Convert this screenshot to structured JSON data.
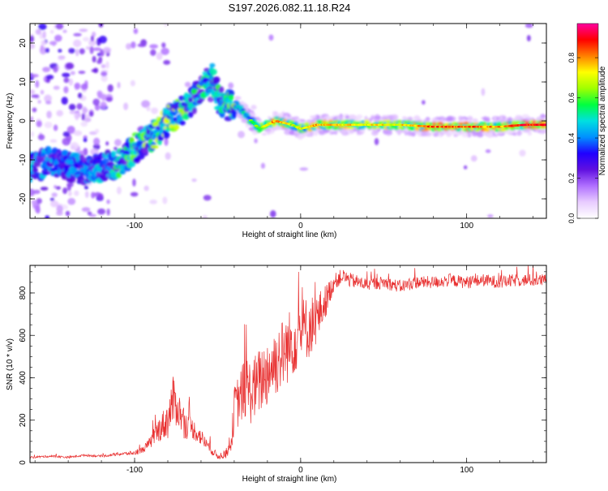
{
  "title": "S197.2026.082.11.18.R24",
  "chart_data": [
    {
      "type": "heatmap",
      "name": "spectrogram",
      "xlabel": "Height of straight line (km)",
      "ylabel": "Frequency (Hz)",
      "xlim": [
        -163,
        148
      ],
      "ylim": [
        -25,
        25
      ],
      "xticks": [
        -100,
        0,
        100
      ],
      "yticks": [
        -20,
        -10,
        0,
        10,
        20
      ],
      "colorbar": {
        "label": "Normalized spectral amplitude",
        "range": [
          0,
          0.97
        ],
        "ticks": [
          0.0,
          0.2,
          0.4,
          0.6,
          0.8
        ],
        "colors": [
          "#ffffff",
          "#e8ccff",
          "#b070ff",
          "#6010e0",
          "#2000ff",
          "#0090ff",
          "#00e0e0",
          "#00ff40",
          "#a0ff00",
          "#ffff00",
          "#ff8000",
          "#ff0000",
          "#ff00a0"
        ]
      },
      "ridge": [
        {
          "x": -160,
          "y": -12,
          "a": 0.35
        },
        {
          "x": -150,
          "y": -10,
          "a": 0.3
        },
        {
          "x": -130,
          "y": -13,
          "a": 0.3
        },
        {
          "x": -110,
          "y": -11,
          "a": 0.45
        },
        {
          "x": -100,
          "y": -7,
          "a": 0.5
        },
        {
          "x": -90,
          "y": -4,
          "a": 0.55
        },
        {
          "x": -80,
          "y": 0,
          "a": 0.6
        },
        {
          "x": -70,
          "y": 3,
          "a": 0.55
        },
        {
          "x": -60,
          "y": 8,
          "a": 0.5
        },
        {
          "x": -53,
          "y": 12,
          "a": 0.4
        },
        {
          "x": -50,
          "y": 6,
          "a": 0.45
        },
        {
          "x": -45,
          "y": 4,
          "a": 0.5
        },
        {
          "x": -38,
          "y": 4,
          "a": 0.55
        },
        {
          "x": -32,
          "y": 1,
          "a": 0.6
        },
        {
          "x": -25,
          "y": -2,
          "a": 0.6
        },
        {
          "x": -15,
          "y": 0,
          "a": 0.85
        },
        {
          "x": -5,
          "y": -1,
          "a": 0.7
        },
        {
          "x": 0,
          "y": -2,
          "a": 0.7
        },
        {
          "x": 10,
          "y": -1,
          "a": 0.8
        },
        {
          "x": 30,
          "y": -1,
          "a": 0.75
        },
        {
          "x": 60,
          "y": -1,
          "a": 0.75
        },
        {
          "x": 80,
          "y": -1.5,
          "a": 0.85
        },
        {
          "x": 100,
          "y": -1.5,
          "a": 0.85
        },
        {
          "x": 120,
          "y": -1.5,
          "a": 0.8
        },
        {
          "x": 135,
          "y": -1,
          "a": 0.9
        },
        {
          "x": 148,
          "y": -1,
          "a": 0.95
        }
      ]
    },
    {
      "type": "line",
      "name": "snr",
      "xlabel": "Height of straight line (km)",
      "ylabel": "SNR (10 * v/v)",
      "xlim": [
        -163,
        148
      ],
      "ylim": [
        0,
        930
      ],
      "xticks": [
        -100,
        0,
        100
      ],
      "yticks": [
        0,
        200,
        400,
        600,
        800
      ],
      "color": "#e83030",
      "x": [
        -163,
        -150,
        -140,
        -130,
        -120,
        -110,
        -100,
        -95,
        -90,
        -85,
        -80,
        -77,
        -74,
        -70,
        -65,
        -60,
        -55,
        -50,
        -45,
        -42,
        -40,
        -37,
        -35,
        -32,
        -30,
        -25,
        -20,
        -15,
        -10,
        -5,
        0,
        5,
        10,
        15,
        20,
        25,
        30,
        40,
        50,
        60,
        70,
        80,
        90,
        100,
        110,
        120,
        130,
        140,
        148
      ],
      "values": [
        25,
        30,
        25,
        35,
        30,
        40,
        45,
        60,
        100,
        160,
        200,
        290,
        260,
        180,
        160,
        120,
        70,
        30,
        40,
        80,
        250,
        300,
        330,
        360,
        330,
        380,
        430,
        480,
        520,
        570,
        620,
        640,
        680,
        760,
        850,
        880,
        860,
        840,
        850,
        830,
        850,
        850,
        860,
        850,
        860,
        850,
        860,
        860,
        860
      ],
      "noise": [
        5,
        5,
        5,
        5,
        5,
        8,
        10,
        15,
        30,
        60,
        90,
        120,
        90,
        70,
        50,
        40,
        25,
        15,
        20,
        35,
        110,
        130,
        140,
        150,
        150,
        160,
        170,
        170,
        170,
        170,
        160,
        150,
        120,
        80,
        40,
        35,
        35,
        30,
        30,
        30,
        30,
        30,
        30,
        30,
        30,
        30,
        30,
        30,
        30
      ]
    }
  ]
}
